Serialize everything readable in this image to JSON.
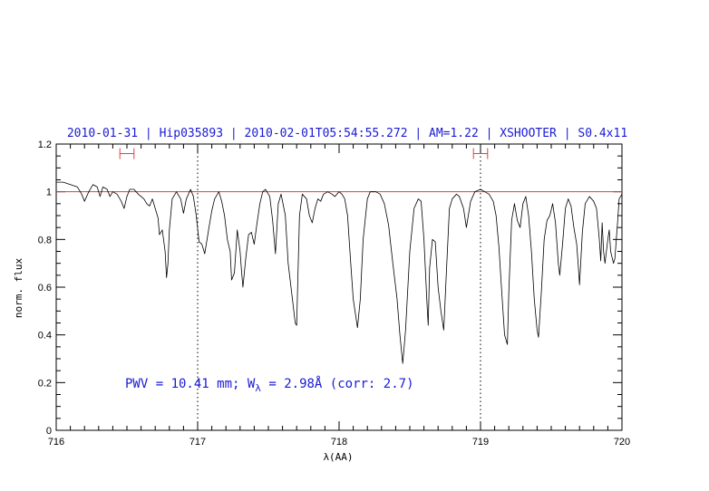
{
  "chart_data": {
    "type": "line",
    "title": "2010-01-31 | Hip035893 | 2010-02-01T05:54:55.272 | AM=1.22 | XSHOOTER | S0.4x11",
    "xlabel": "λ(AA)",
    "ylabel": "norm. flux",
    "xlim": [
      716,
      720
    ],
    "ylim": [
      0,
      1.2
    ],
    "x_ticks": [
      "716",
      "717",
      "718",
      "719",
      "720"
    ],
    "y_ticks": [
      "0",
      "0.2",
      "0.4",
      "0.6",
      "0.8",
      "1",
      "1.2"
    ],
    "reference_line": 1.0,
    "reference_color": "#e04040",
    "vertical_markers": [
      717.0,
      719.0
    ],
    "continuum_windows": [
      {
        "x1": 716.45,
        "x2": 716.55,
        "y": 1.16
      },
      {
        "x1": 718.95,
        "x2": 719.05,
        "y": 1.16
      }
    ],
    "annotation": {
      "prefix": "PWV = 10.41 mm; W",
      "subscript": "λ",
      "suffix": " = 2.98Å (corr: 2.7)"
    },
    "series": [
      {
        "color": "#000000",
        "points": [
          [
            716.0,
            1.04
          ],
          [
            716.05,
            1.04
          ],
          [
            716.1,
            1.03
          ],
          [
            716.15,
            1.02
          ],
          [
            716.18,
            0.99
          ],
          [
            716.2,
            0.96
          ],
          [
            716.23,
            1.0
          ],
          [
            716.26,
            1.03
          ],
          [
            716.29,
            1.02
          ],
          [
            716.31,
            0.98
          ],
          [
            716.33,
            1.02
          ],
          [
            716.36,
            1.01
          ],
          [
            716.38,
            0.98
          ],
          [
            716.4,
            1.0
          ],
          [
            716.43,
            0.99
          ],
          [
            716.46,
            0.96
          ],
          [
            716.48,
            0.93
          ],
          [
            716.5,
            0.98
          ],
          [
            716.52,
            1.01
          ],
          [
            716.55,
            1.01
          ],
          [
            716.58,
            0.99
          ],
          [
            716.62,
            0.97
          ],
          [
            716.64,
            0.95
          ],
          [
            716.66,
            0.94
          ],
          [
            716.68,
            0.97
          ],
          [
            716.7,
            0.93
          ],
          [
            716.72,
            0.89
          ],
          [
            716.73,
            0.82
          ],
          [
            716.75,
            0.84
          ],
          [
            716.77,
            0.75
          ],
          [
            716.78,
            0.64
          ],
          [
            716.79,
            0.7
          ],
          [
            716.8,
            0.84
          ],
          [
            716.82,
            0.97
          ],
          [
            716.85,
            1.0
          ],
          [
            716.88,
            0.97
          ],
          [
            716.9,
            0.91
          ],
          [
            716.92,
            0.97
          ],
          [
            716.95,
            1.01
          ],
          [
            716.97,
            0.98
          ],
          [
            716.99,
            0.9
          ],
          [
            717.01,
            0.79
          ],
          [
            717.03,
            0.78
          ],
          [
            717.05,
            0.74
          ],
          [
            717.08,
            0.85
          ],
          [
            717.1,
            0.92
          ],
          [
            717.12,
            0.97
          ],
          [
            717.15,
            1.0
          ],
          [
            717.17,
            0.96
          ],
          [
            717.19,
            0.9
          ],
          [
            717.21,
            0.8
          ],
          [
            717.23,
            0.75
          ],
          [
            717.24,
            0.63
          ],
          [
            717.26,
            0.66
          ],
          [
            717.28,
            0.84
          ],
          [
            717.3,
            0.75
          ],
          [
            717.31,
            0.67
          ],
          [
            717.32,
            0.6
          ],
          [
            717.34,
            0.72
          ],
          [
            717.36,
            0.82
          ],
          [
            717.38,
            0.83
          ],
          [
            717.4,
            0.78
          ],
          [
            717.42,
            0.87
          ],
          [
            717.44,
            0.95
          ],
          [
            717.46,
            1.0
          ],
          [
            717.48,
            1.01
          ],
          [
            717.51,
            0.98
          ],
          [
            717.53,
            0.88
          ],
          [
            717.55,
            0.74
          ],
          [
            717.57,
            0.95
          ],
          [
            717.59,
            0.99
          ],
          [
            717.62,
            0.9
          ],
          [
            717.64,
            0.7
          ],
          [
            717.67,
            0.55
          ],
          [
            717.69,
            0.45
          ],
          [
            717.7,
            0.44
          ],
          [
            717.72,
            0.9
          ],
          [
            717.74,
            0.99
          ],
          [
            717.77,
            0.97
          ],
          [
            717.79,
            0.9
          ],
          [
            717.81,
            0.87
          ],
          [
            717.83,
            0.93
          ],
          [
            717.85,
            0.97
          ],
          [
            717.87,
            0.96
          ],
          [
            717.89,
            0.99
          ],
          [
            717.92,
            1.0
          ],
          [
            717.95,
            0.99
          ],
          [
            717.97,
            0.98
          ],
          [
            718.0,
            1.0
          ],
          [
            718.02,
            0.99
          ],
          [
            718.04,
            0.97
          ],
          [
            718.06,
            0.9
          ],
          [
            718.08,
            0.72
          ],
          [
            718.1,
            0.55
          ],
          [
            718.12,
            0.47
          ],
          [
            718.13,
            0.43
          ],
          [
            718.15,
            0.55
          ],
          [
            718.17,
            0.8
          ],
          [
            718.2,
            0.97
          ],
          [
            718.22,
            1.0
          ],
          [
            718.26,
            1.0
          ],
          [
            718.29,
            0.99
          ],
          [
            718.32,
            0.95
          ],
          [
            718.35,
            0.86
          ],
          [
            718.38,
            0.7
          ],
          [
            718.41,
            0.55
          ],
          [
            718.43,
            0.4
          ],
          [
            718.45,
            0.28
          ],
          [
            718.47,
            0.42
          ],
          [
            718.5,
            0.75
          ],
          [
            718.53,
            0.93
          ],
          [
            718.56,
            0.97
          ],
          [
            718.58,
            0.96
          ],
          [
            718.6,
            0.8
          ],
          [
            718.62,
            0.55
          ],
          [
            718.63,
            0.44
          ],
          [
            718.64,
            0.68
          ],
          [
            718.66,
            0.8
          ],
          [
            718.68,
            0.79
          ],
          [
            718.7,
            0.6
          ],
          [
            718.72,
            0.5
          ],
          [
            718.74,
            0.42
          ],
          [
            718.76,
            0.68
          ],
          [
            718.78,
            0.93
          ],
          [
            718.8,
            0.97
          ],
          [
            718.83,
            0.99
          ],
          [
            718.85,
            0.98
          ],
          [
            718.88,
            0.93
          ],
          [
            718.9,
            0.85
          ],
          [
            718.93,
            0.96
          ],
          [
            718.96,
            1.0
          ],
          [
            719.0,
            1.01
          ],
          [
            719.03,
            1.0
          ],
          [
            719.06,
            0.99
          ],
          [
            719.09,
            0.96
          ],
          [
            719.11,
            0.9
          ],
          [
            719.13,
            0.77
          ],
          [
            719.15,
            0.58
          ],
          [
            719.17,
            0.4
          ],
          [
            719.19,
            0.36
          ],
          [
            719.2,
            0.58
          ],
          [
            719.22,
            0.88
          ],
          [
            719.24,
            0.95
          ],
          [
            719.26,
            0.88
          ],
          [
            719.28,
            0.85
          ],
          [
            719.3,
            0.95
          ],
          [
            719.32,
            0.98
          ],
          [
            719.34,
            0.9
          ],
          [
            719.36,
            0.75
          ],
          [
            719.38,
            0.55
          ],
          [
            719.4,
            0.42
          ],
          [
            719.41,
            0.39
          ],
          [
            719.43,
            0.58
          ],
          [
            719.45,
            0.8
          ],
          [
            719.47,
            0.88
          ],
          [
            719.49,
            0.9
          ],
          [
            719.51,
            0.95
          ],
          [
            719.53,
            0.87
          ],
          [
            719.55,
            0.7
          ],
          [
            719.56,
            0.65
          ],
          [
            719.58,
            0.78
          ],
          [
            719.6,
            0.93
          ],
          [
            719.62,
            0.97
          ],
          [
            719.64,
            0.94
          ],
          [
            719.66,
            0.85
          ],
          [
            719.68,
            0.78
          ],
          [
            719.69,
            0.7
          ],
          [
            719.7,
            0.61
          ],
          [
            719.72,
            0.83
          ],
          [
            719.74,
            0.95
          ],
          [
            719.77,
            0.98
          ],
          [
            719.8,
            0.96
          ],
          [
            719.82,
            0.93
          ],
          [
            719.84,
            0.8
          ],
          [
            719.85,
            0.71
          ],
          [
            719.86,
            0.87
          ],
          [
            719.87,
            0.75
          ],
          [
            719.88,
            0.7
          ],
          [
            719.9,
            0.8
          ],
          [
            719.91,
            0.84
          ],
          [
            719.92,
            0.75
          ],
          [
            719.94,
            0.7
          ],
          [
            719.95,
            0.72
          ],
          [
            719.96,
            0.8
          ],
          [
            719.97,
            0.88
          ],
          [
            719.98,
            0.97
          ],
          [
            720.0,
            0.99
          ]
        ]
      }
    ]
  }
}
